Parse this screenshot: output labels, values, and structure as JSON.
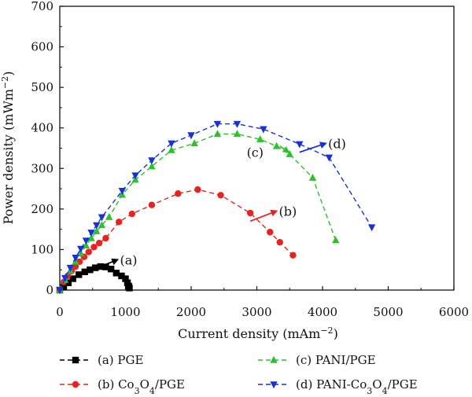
{
  "chart_data": {
    "type": "line",
    "xlabel": "Current density (mAm",
    "xlabel_sup": "−2",
    "xlabel_end": ")",
    "ylabel": "Power density (mWm",
    "ylabel_sup": "−2",
    "ylabel_end": ")",
    "xlim": [
      0,
      6000
    ],
    "ylim": [
      0,
      700
    ],
    "xticks": [
      0,
      1000,
      2000,
      3000,
      4000,
      5000,
      6000
    ],
    "yticks": [
      0,
      100,
      200,
      300,
      400,
      500,
      600,
      700
    ],
    "legend_position": "bottom",
    "series": [
      {
        "key": "a",
        "name": "(a) PGE",
        "name_parts": [
          "(a) PGE"
        ],
        "color": "#000000",
        "marker": "square",
        "x": [
          0,
          60,
          130,
          200,
          290,
          380,
          460,
          540,
          620,
          700,
          780,
          860,
          940,
          1000,
          1030,
          1050,
          1060
        ],
        "y": [
          0,
          8,
          18,
          28,
          38,
          45,
          50,
          55,
          58,
          57,
          52,
          42,
          35,
          28,
          18,
          10,
          5
        ],
        "annotation": {
          "label": "(a)",
          "x": 880,
          "y": 75,
          "arrow_from": [
            620,
            58
          ]
        }
      },
      {
        "key": "b",
        "name": "(b) Co3O4/PGE",
        "name_parts": [
          "(b) Co",
          "3",
          "O",
          "4",
          "/PGE"
        ],
        "color": "#e8231f",
        "marker": "circle",
        "x": [
          0,
          60,
          120,
          180,
          240,
          300,
          370,
          440,
          520,
          600,
          700,
          900,
          1100,
          1400,
          1800,
          2100,
          2450,
          2900,
          3200,
          3350,
          3550
        ],
        "y": [
          0,
          20,
          35,
          47,
          58,
          70,
          82,
          94,
          106,
          116,
          128,
          168,
          188,
          210,
          238,
          248,
          234,
          190,
          143,
          118,
          86
        ],
        "annotation": {
          "label": "(b)",
          "x": 3300,
          "y": 195,
          "arrow_from": [
            2900,
            170
          ]
        }
      },
      {
        "key": "c",
        "name": "(c) PANI/PGE",
        "name_parts": [
          "(c) PANI/PGE"
        ],
        "color": "#2dc12d",
        "marker": "triangle-up",
        "x": [
          0,
          80,
          160,
          240,
          320,
          400,
          480,
          560,
          640,
          750,
          950,
          1150,
          1400,
          1700,
          2050,
          2400,
          2700,
          3050,
          3300,
          3500,
          3850,
          4200
        ],
        "y": [
          0,
          25,
          48,
          70,
          90,
          110,
          128,
          145,
          160,
          180,
          235,
          272,
          305,
          345,
          362,
          385,
          385,
          372,
          355,
          335,
          277,
          123
        ],
        "annotation": {
          "label": "(c)",
          "x": 3150,
          "y": 340,
          "arrow_from": [
            3350,
            355
          ]
        }
      },
      {
        "key": "d",
        "name": "(d) PANI-Co3O4/PGE",
        "name_parts": [
          "(d) PANI-Co",
          "3",
          "O",
          "4",
          "/PGE"
        ],
        "color": "#1731d8",
        "marker": "triangle-down",
        "x": [
          0,
          80,
          160,
          240,
          320,
          400,
          480,
          560,
          640,
          950,
          1150,
          1400,
          1700,
          2000,
          2400,
          2700,
          3100,
          3650,
          4100,
          4750
        ],
        "y": [
          0,
          30,
          55,
          80,
          102,
          122,
          142,
          160,
          180,
          245,
          283,
          320,
          362,
          382,
          410,
          410,
          397,
          360,
          327,
          155
        ],
        "annotation": {
          "label": "(d)",
          "x": 4050,
          "y": 362,
          "arrow_from": [
            3650,
            340
          ]
        }
      }
    ]
  }
}
